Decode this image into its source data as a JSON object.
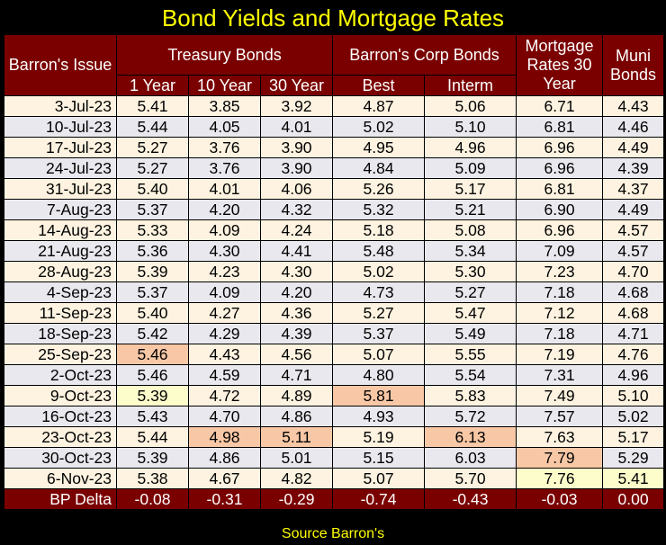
{
  "title": "Bond Yields and Mortgage Rates",
  "headers": {
    "issue": "Barron's Issue",
    "treasury": "Treasury Bonds",
    "corp": "Barron's Corp Bonds",
    "mortgage": "Mortgage Rates 30 Year",
    "muni": "Muni Bonds",
    "sub": [
      "1 Year",
      "10 Year",
      "30 Year",
      "Best",
      "Interm"
    ]
  },
  "rows": [
    {
      "date": "3-Jul-23",
      "values": [
        "5.41",
        "3.85",
        "3.92",
        "4.87",
        "5.06",
        "6.71",
        "4.43"
      ]
    },
    {
      "date": "10-Jul-23",
      "values": [
        "5.44",
        "4.05",
        "4.01",
        "5.02",
        "5.10",
        "6.81",
        "4.46"
      ]
    },
    {
      "date": "17-Jul-23",
      "values": [
        "5.27",
        "3.76",
        "3.90",
        "4.95",
        "4.96",
        "6.96",
        "4.49"
      ]
    },
    {
      "date": "24-Jul-23",
      "values": [
        "5.27",
        "3.76",
        "3.90",
        "4.84",
        "5.09",
        "6.96",
        "4.39"
      ]
    },
    {
      "date": "31-Jul-23",
      "values": [
        "5.40",
        "4.01",
        "4.06",
        "5.26",
        "5.17",
        "6.81",
        "4.37"
      ]
    },
    {
      "date": "7-Aug-23",
      "values": [
        "5.37",
        "4.20",
        "4.32",
        "5.32",
        "5.21",
        "6.90",
        "4.49"
      ]
    },
    {
      "date": "14-Aug-23",
      "values": [
        "5.33",
        "4.09",
        "4.24",
        "5.18",
        "5.08",
        "6.96",
        "4.57"
      ]
    },
    {
      "date": "21-Aug-23",
      "values": [
        "5.36",
        "4.30",
        "4.41",
        "5.48",
        "5.34",
        "7.09",
        "4.57"
      ]
    },
    {
      "date": "28-Aug-23",
      "values": [
        "5.39",
        "4.23",
        "4.30",
        "5.02",
        "5.30",
        "7.23",
        "4.70"
      ]
    },
    {
      "date": "4-Sep-23",
      "values": [
        "5.37",
        "4.09",
        "4.20",
        "4.73",
        "5.27",
        "7.18",
        "4.68"
      ]
    },
    {
      "date": "11-Sep-23",
      "values": [
        "5.40",
        "4.27",
        "4.36",
        "5.27",
        "5.47",
        "7.12",
        "4.68"
      ]
    },
    {
      "date": "18-Sep-23",
      "values": [
        "5.42",
        "4.29",
        "4.39",
        "5.37",
        "5.49",
        "7.18",
        "4.71"
      ]
    },
    {
      "date": "25-Sep-23",
      "values": [
        "5.46",
        "4.43",
        "4.56",
        "5.07",
        "5.55",
        "7.19",
        "4.76"
      ]
    },
    {
      "date": "2-Oct-23",
      "values": [
        "5.46",
        "4.59",
        "4.71",
        "4.80",
        "5.54",
        "7.31",
        "4.96"
      ]
    },
    {
      "date": "9-Oct-23",
      "values": [
        "5.39",
        "4.72",
        "4.89",
        "5.81",
        "5.83",
        "7.49",
        "5.10"
      ]
    },
    {
      "date": "16-Oct-23",
      "values": [
        "5.43",
        "4.70",
        "4.86",
        "4.93",
        "5.72",
        "7.57",
        "5.02"
      ]
    },
    {
      "date": "23-Oct-23",
      "values": [
        "5.44",
        "4.98",
        "5.11",
        "5.19",
        "6.13",
        "7.63",
        "5.17"
      ]
    },
    {
      "date": "30-Oct-23",
      "values": [
        "5.39",
        "4.86",
        "5.01",
        "5.15",
        "6.03",
        "7.79",
        "5.29"
      ]
    },
    {
      "date": "6-Nov-23",
      "values": [
        "5.38",
        "4.67",
        "4.82",
        "5.07",
        "5.70",
        "7.76",
        "5.41"
      ]
    }
  ],
  "delta": {
    "label": "BP Delta",
    "values": [
      "-0.08",
      "-0.31",
      "-0.29",
      "-0.74",
      "-0.43",
      "-0.03",
      "0.00"
    ]
  },
  "highlights": {
    "orange": [
      [
        12,
        0
      ],
      [
        14,
        3
      ],
      [
        16,
        1
      ],
      [
        16,
        2
      ],
      [
        16,
        4
      ],
      [
        17,
        5
      ]
    ],
    "yellow": [
      [
        14,
        0
      ],
      [
        18,
        5
      ],
      [
        18,
        6
      ]
    ]
  },
  "colors": {
    "header_bg": "#7a0000",
    "title": "#ffff00",
    "row_odd": "#fdf3e0",
    "row_even": "#e8e8ee",
    "highlight_orange": "#f8c8a6",
    "highlight_yellow": "#fdfccb"
  },
  "source": "Source Barron's"
}
